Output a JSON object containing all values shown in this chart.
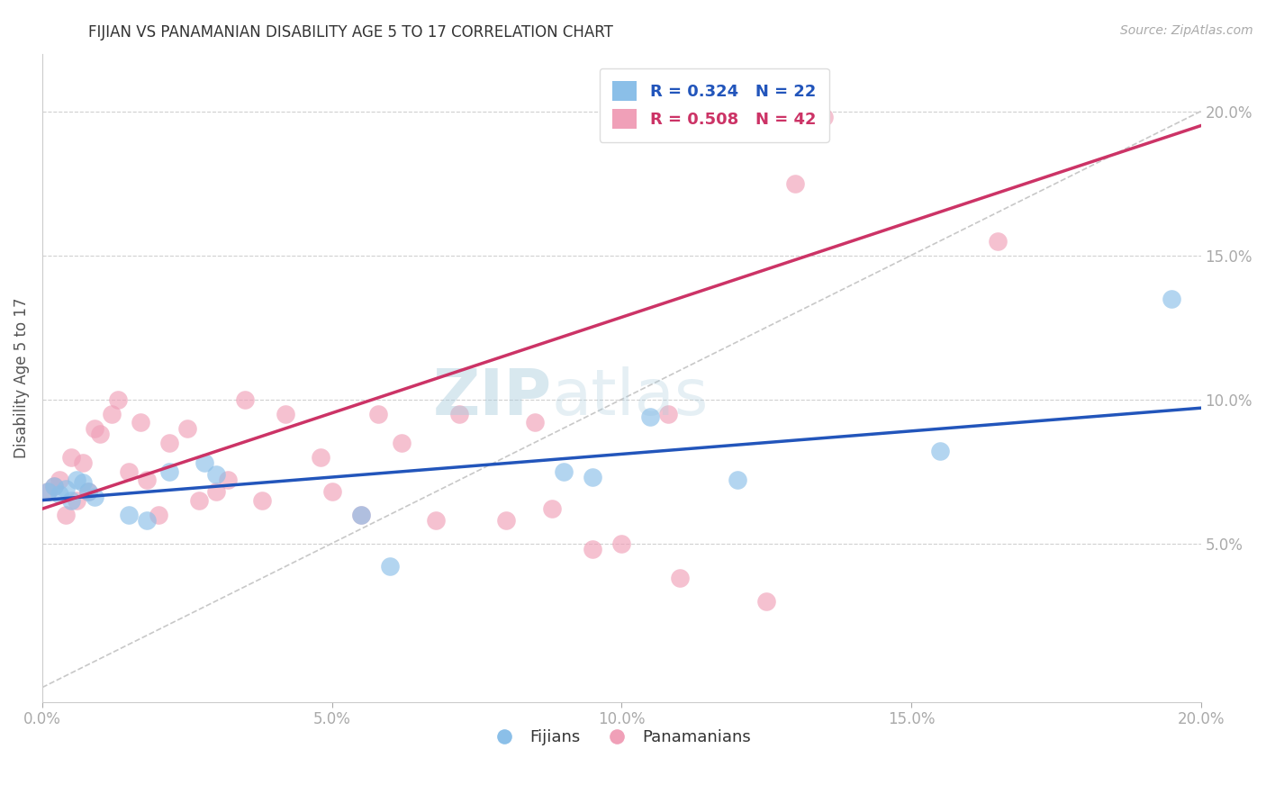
{
  "title": "FIJIAN VS PANAMANIAN DISABILITY AGE 5 TO 17 CORRELATION CHART",
  "source_text": "Source: ZipAtlas.com",
  "ylabel": "Disability Age 5 to 17",
  "xlim": [
    0.0,
    0.2
  ],
  "ylim": [
    -0.005,
    0.22
  ],
  "xticks": [
    0.0,
    0.05,
    0.1,
    0.15,
    0.2
  ],
  "yticks": [
    0.05,
    0.1,
    0.15,
    0.2
  ],
  "ytick_labels": [
    "5.0%",
    "10.0%",
    "15.0%",
    "20.0%"
  ],
  "xtick_labels": [
    "0.0%",
    "5.0%",
    "10.0%",
    "15.0%",
    "20.0%"
  ],
  "background_color": "#ffffff",
  "grid_color": "#d0d0d0",
  "fijian_color": "#8BBFE8",
  "panamanian_color": "#F0A0B8",
  "fijian_line_color": "#2255BB",
  "panamanian_line_color": "#CC3366",
  "diagonal_color": "#c8c8c8",
  "legend_fijian_label": "R = 0.324   N = 22",
  "legend_panamanian_label": "R = 0.508   N = 42",
  "fijians_label": "Fijians",
  "panamanians_label": "Panamanians",
  "fijian_x": [
    0.001,
    0.002,
    0.003,
    0.004,
    0.005,
    0.006,
    0.007,
    0.008,
    0.009,
    0.015,
    0.018,
    0.022,
    0.028,
    0.03,
    0.055,
    0.06,
    0.09,
    0.095,
    0.105,
    0.12,
    0.155,
    0.195
  ],
  "fijian_y": [
    0.068,
    0.07,
    0.067,
    0.069,
    0.065,
    0.072,
    0.071,
    0.068,
    0.066,
    0.06,
    0.058,
    0.075,
    0.078,
    0.074,
    0.06,
    0.042,
    0.075,
    0.073,
    0.094,
    0.072,
    0.082,
    0.135
  ],
  "panamanian_x": [
    0.001,
    0.002,
    0.003,
    0.004,
    0.005,
    0.006,
    0.007,
    0.008,
    0.009,
    0.01,
    0.012,
    0.013,
    0.015,
    0.017,
    0.018,
    0.02,
    0.022,
    0.025,
    0.027,
    0.03,
    0.032,
    0.035,
    0.038,
    0.042,
    0.048,
    0.05,
    0.055,
    0.058,
    0.062,
    0.068,
    0.072,
    0.08,
    0.085,
    0.088,
    0.095,
    0.1,
    0.108,
    0.11,
    0.125,
    0.13,
    0.135,
    0.165
  ],
  "panamanian_y": [
    0.068,
    0.07,
    0.072,
    0.06,
    0.08,
    0.065,
    0.078,
    0.068,
    0.09,
    0.088,
    0.095,
    0.1,
    0.075,
    0.092,
    0.072,
    0.06,
    0.085,
    0.09,
    0.065,
    0.068,
    0.072,
    0.1,
    0.065,
    0.095,
    0.08,
    0.068,
    0.06,
    0.095,
    0.085,
    0.058,
    0.095,
    0.058,
    0.092,
    0.062,
    0.048,
    0.05,
    0.095,
    0.038,
    0.03,
    0.175,
    0.198,
    0.155
  ],
  "fijian_line_x0": 0.0,
  "fijian_line_y0": 0.065,
  "fijian_line_x1": 0.2,
  "fijian_line_y1": 0.097,
  "panamanian_line_x0": 0.0,
  "panamanian_line_y0": 0.062,
  "panamanian_line_x1": 0.2,
  "panamanian_line_y1": 0.195
}
